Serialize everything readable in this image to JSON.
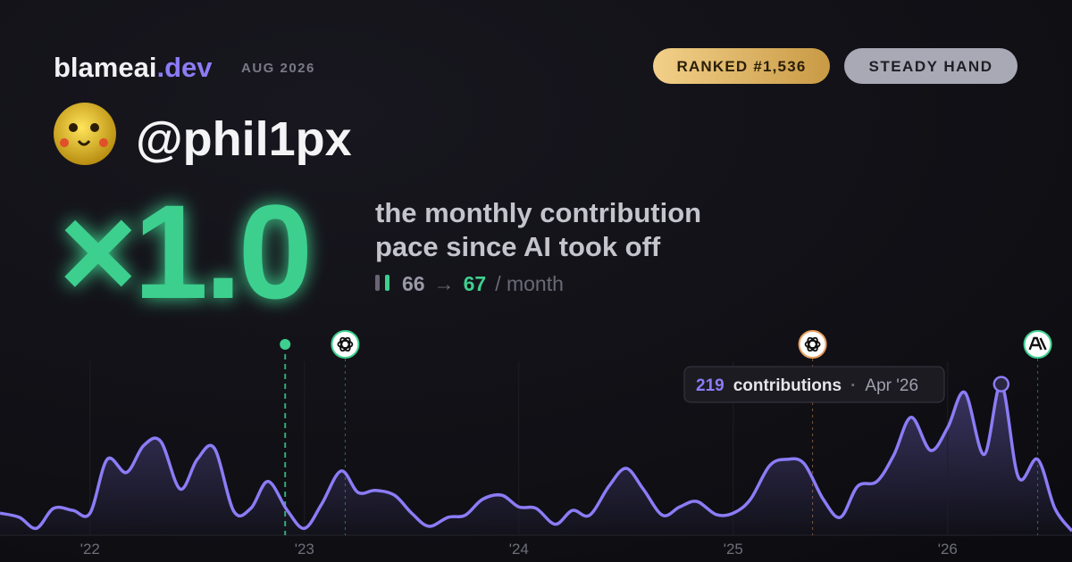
{
  "header": {
    "brand": "blameai",
    "brand_suffix": ".dev",
    "period": "AUG 2026",
    "rank_badge": "RANKED #1,536",
    "persona_badge": "STEADY HAND",
    "handle": "@phil1px"
  },
  "headline": {
    "multiplier": "×1.0",
    "caption_lines": [
      "the monthly contribution",
      "pace since AI took off"
    ],
    "before": "66",
    "arrow": "→",
    "after": "67",
    "unit": "/ month"
  },
  "tooltip": {
    "label": "contributions",
    "separator": "·",
    "date": "Apr '26",
    "point_index": 56
  },
  "chart_data": {
    "type": "line",
    "x": [
      2021.58,
      2021.67,
      2021.75,
      2021.83,
      2021.92,
      2022,
      2022.08,
      2022.17,
      2022.25,
      2022.33,
      2022.42,
      2022.5,
      2022.58,
      2022.67,
      2022.75,
      2022.83,
      2022.92,
      2023,
      2023.08,
      2023.17,
      2023.25,
      2023.33,
      2023.42,
      2023.5,
      2023.58,
      2023.67,
      2023.75,
      2023.83,
      2023.92,
      2024,
      2024.08,
      2024.17,
      2024.25,
      2024.33,
      2024.42,
      2024.5,
      2024.58,
      2024.67,
      2024.75,
      2024.83,
      2024.92,
      2025,
      2025.08,
      2025.17,
      2025.25,
      2025.33,
      2025.42,
      2025.5,
      2025.58,
      2025.67,
      2025.75,
      2025.83,
      2025.92,
      2026,
      2026.08,
      2026.17,
      2026.25,
      2026.33,
      2026.42,
      2026.5,
      2026.58
    ],
    "series": [
      {
        "name": "contributions",
        "color": "#8b7cf6",
        "values": [
          32,
          26,
          10,
          39,
          36,
          32,
          110,
          91,
          130,
          136,
          67,
          110,
          126,
          35,
          39,
          78,
          36,
          10,
          45,
          93,
          62,
          65,
          58,
          32,
          13,
          26,
          29,
          52,
          58,
          41,
          39,
          16,
          36,
          29,
          71,
          97,
          67,
          29,
          41,
          49,
          30,
          32,
          52,
          101,
          110,
          104,
          52,
          26,
          71,
          78,
          117,
          171,
          123,
          156,
          207,
          117,
          219,
          84,
          110,
          39,
          6
        ]
      }
    ],
    "xlim": [
      2021.58,
      2026.58
    ],
    "ylim": [
      0,
      300
    ],
    "xticks": [
      {
        "value": 2022,
        "label": "'22"
      },
      {
        "value": 2023,
        "label": "'23"
      },
      {
        "value": 2024,
        "label": "'24"
      },
      {
        "value": 2025,
        "label": "'25"
      },
      {
        "value": 2026,
        "label": "'26"
      }
    ],
    "grid": true,
    "event_markers": [
      {
        "x": 2022.91,
        "color": "#3ecf8e"
      },
      {
        "x": 2023.19,
        "color": "#3ecf8e"
      },
      {
        "x": 2025.37,
        "color": "#e8a060"
      },
      {
        "x": 2026.42,
        "color": "#3ecf8e"
      }
    ]
  }
}
